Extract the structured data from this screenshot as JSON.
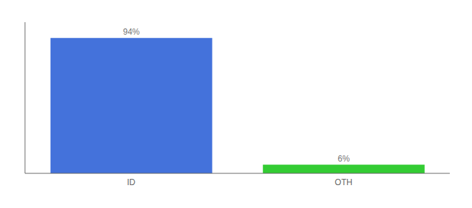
{
  "chart_data": {
    "type": "bar",
    "categories": [
      "ID",
      "OTH"
    ],
    "values": [
      94,
      6
    ],
    "value_labels": [
      "94%",
      "6%"
    ],
    "colors": [
      "#4472db",
      "#33cc33"
    ],
    "ylim": [
      0,
      105
    ],
    "data_labels": true,
    "tick_labels": "x",
    "grid": false
  }
}
